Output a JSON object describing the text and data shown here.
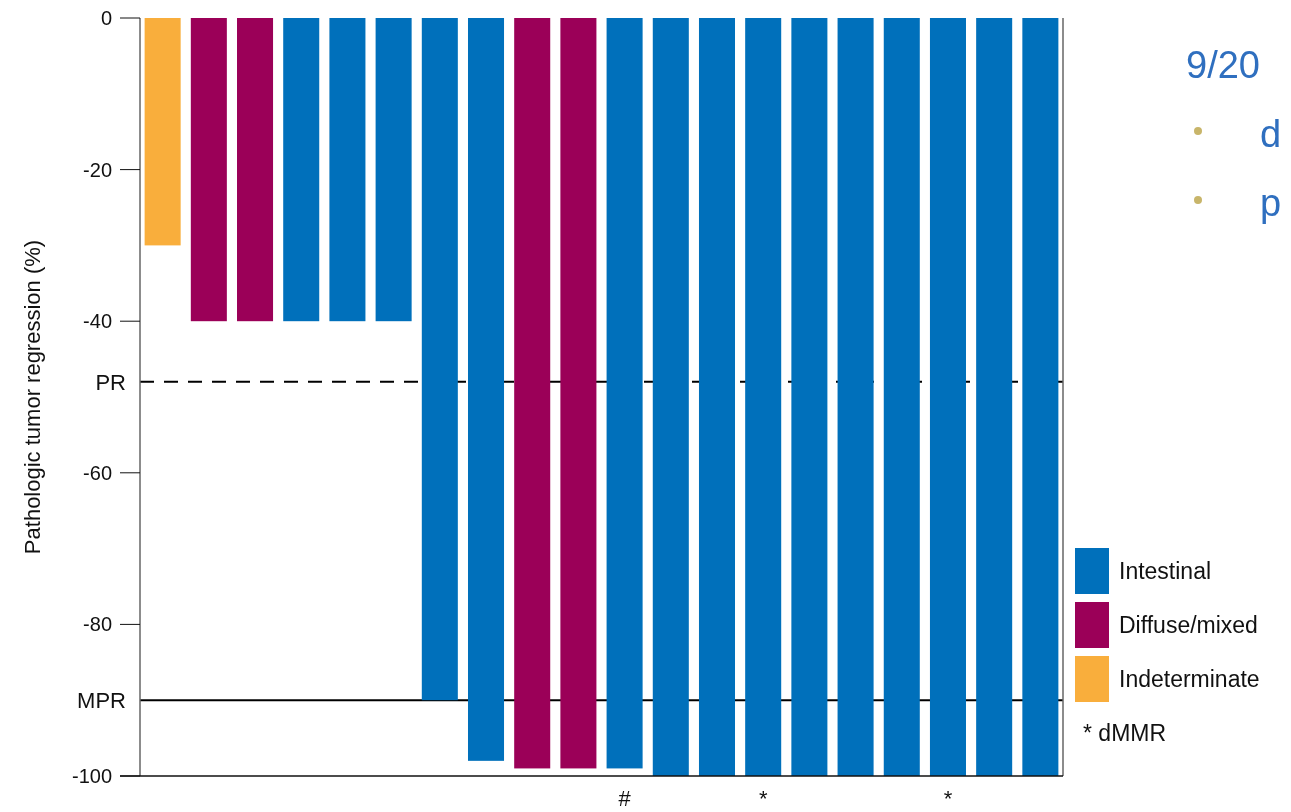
{
  "chart_data": {
    "type": "bar",
    "ylabel": "Pathologic tumor regression (%)",
    "categories": [
      null,
      null,
      null,
      null,
      null,
      null,
      null,
      null,
      null,
      null,
      "#",
      null,
      null,
      "*",
      null,
      null,
      null,
      "*",
      null,
      null
    ],
    "stacked": true,
    "series": [
      {
        "name": "Intestinal",
        "color": "#0070bb",
        "values": [
          null,
          null,
          null,
          -40,
          -40,
          -40,
          -90,
          -98,
          null,
          null,
          -99,
          -100,
          -100,
          -100,
          -100,
          -100,
          -100,
          -100,
          -100,
          -100
        ]
      },
      {
        "name": "Diffuse/mixed",
        "color": "#9b0058",
        "values": [
          null,
          -40,
          -40,
          null,
          null,
          null,
          null,
          null,
          -99,
          -99,
          null,
          null,
          null,
          null,
          null,
          null,
          null,
          null,
          null,
          null
        ]
      },
      {
        "name": "Indeterminate",
        "color": "#f9ae3c",
        "values": [
          -30,
          null,
          null,
          null,
          null,
          null,
          null,
          null,
          null,
          null,
          null,
          null,
          null,
          null,
          null,
          null,
          null,
          null,
          null,
          null
        ]
      }
    ],
    "ylim": [
      -100,
      0
    ],
    "yticks": [
      0,
      -20,
      -40,
      -60,
      -80,
      -100
    ],
    "ref_lines": [
      {
        "axis": "y",
        "value": -48,
        "label": "PR",
        "line_style": "dashed",
        "color": "#000000"
      },
      {
        "axis": "y",
        "value": -90,
        "label": "MPR",
        "line_style": "solid",
        "color": "#000000"
      }
    ],
    "legend": "bottom right",
    "grid": false,
    "annotations": [
      "* dMMR",
      "9/20",
      "d",
      "p"
    ]
  }
}
